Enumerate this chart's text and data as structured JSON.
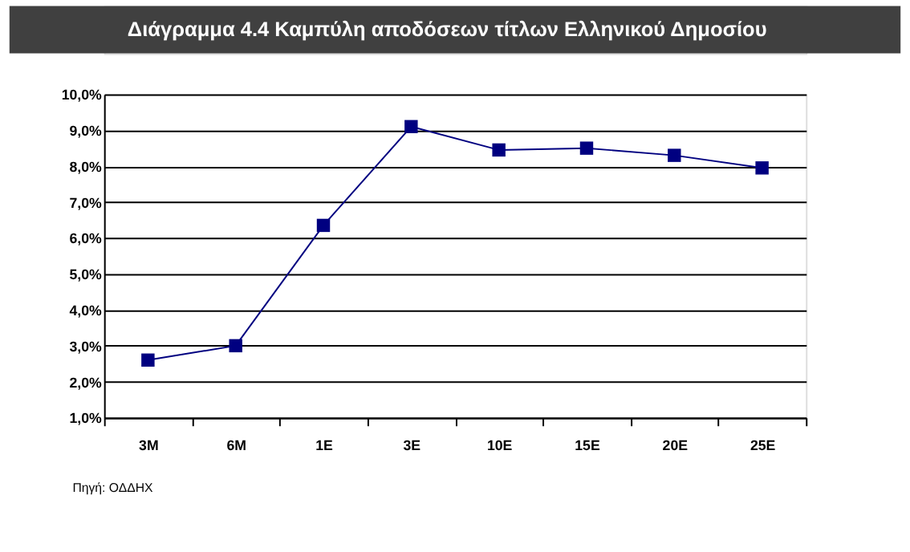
{
  "chart_data": {
    "type": "line",
    "title": "Διάγραμμα 4.4   Καμπύλη αποδόσεων τίτλων Ελληνικού Δημοσίου",
    "categories": [
      "3M",
      "6M",
      "1E",
      "3E",
      "10E",
      "15E",
      "20E",
      "25E"
    ],
    "series": [
      {
        "color": "#000080",
        "values": [
          2.6,
          3.0,
          6.35,
          9.1,
          8.45,
          8.5,
          8.3,
          7.95
        ]
      }
    ],
    "ylim": [
      1,
      10
    ],
    "yticks": [
      {
        "value": 1,
        "label": "1,0%"
      },
      {
        "value": 2,
        "label": "2,0%"
      },
      {
        "value": 3,
        "label": "3,0%"
      },
      {
        "value": 4,
        "label": "4,0%"
      },
      {
        "value": 5,
        "label": "5,0%"
      },
      {
        "value": 6,
        "label": "6,0%"
      },
      {
        "value": 7,
        "label": "7,0%"
      },
      {
        "value": 8,
        "label": "8,0%"
      },
      {
        "value": 9,
        "label": "9,0%"
      },
      {
        "value": 10,
        "label": "10,0%"
      }
    ],
    "grid": "y",
    "marker": "square",
    "line_style": "solid",
    "annotations": [
      "Πηγή:  ΟΔΔΗΧ"
    ]
  }
}
